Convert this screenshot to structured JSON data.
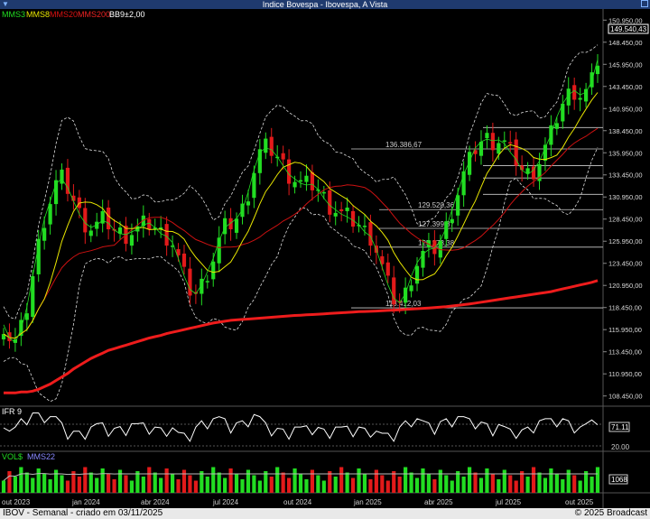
{
  "window": {
    "title": "Indice Bovespa - Ibovespa, A Vista"
  },
  "legend": [
    {
      "label": "MMS3",
      "color": "#22dd22"
    },
    {
      "label": "MMS8",
      "color": "#e8e600"
    },
    {
      "label": "MMS20",
      "color": "#dd1111"
    },
    {
      "label": "MMS200",
      "color": "#ee2222"
    },
    {
      "label": "BB9±2,00",
      "color": "#ffffff"
    }
  ],
  "price_axis": {
    "ticks": [
      "150.950,00",
      "148.450,00",
      "145.950,00",
      "143.450,00",
      "140.950,00",
      "138.450,00",
      "135.950,00",
      "133.450,00",
      "130.950,00",
      "128.450,00",
      "125.950,00",
      "123.450,00",
      "120.950,00",
      "118.450,00",
      "115.950,00",
      "113.450,00",
      "110.950,00",
      "108.450,00"
    ],
    "last_price_label": "149.540,43"
  },
  "fib_labels": [
    "136.386,67",
    "129.520,36",
    "127.399,37",
    "125.278,38",
    "118.412,03"
  ],
  "time_axis": [
    "out 2023",
    "jan 2024",
    "abr 2024",
    "jul 2024",
    "out 2024",
    "jan 2025",
    "abr 2025",
    "jul 2025",
    "out 2025"
  ],
  "ifr": {
    "label": "IFR 9",
    "value_label": "71.11",
    "bottom_label": "20.00"
  },
  "volume": {
    "label": "VOL$",
    "ma_label": "MMS22",
    "value_label": "1068"
  },
  "footer": {
    "left": "IBOV - Semanal - criado em 03/11/2025",
    "right": "© 2025 Broadcast"
  },
  "chart_data": {
    "type": "candlestick",
    "title": "Indice Bovespa - Ibovespa, A Vista",
    "ylim": [
      107500,
      152000
    ],
    "series": [
      {
        "name": "MMS3",
        "values": [
          116500,
          115000,
          114500,
          116000,
          118500,
          122000,
          125500,
          128500,
          130500,
          132500,
          133000,
          132000,
          130500,
          129000,
          128000,
          127500,
          127800,
          128300,
          128000,
          127200,
          126800,
          126700,
          127000,
          127300,
          127800,
          128000,
          127500,
          126800,
          126500,
          125800,
          124000,
          122000,
          120500,
          120000,
          121000,
          122500,
          124000,
          126000,
          127500,
          128000,
          128500,
          129500,
          131500,
          134000,
          136000,
          136500,
          136300,
          135500,
          134500,
          133500,
          133000,
          132500,
          132300,
          132400,
          131800,
          130800,
          130000,
          129500,
          129000,
          128700,
          128300,
          127800,
          127000,
          126500,
          125000,
          123000,
          121000,
          119500,
          119000,
          120000,
          122000,
          123500,
          124500,
          125000,
          125200,
          126000,
          127500,
          129500,
          131500,
          133500,
          135000,
          136500,
          137200,
          137500,
          137300,
          137400,
          137000,
          136000,
          135200,
          134000,
          133500,
          134000,
          135000,
          136500,
          138000,
          140000,
          141500,
          142500,
          143000,
          142500,
          142800,
          144000,
          146500
        ]
      },
      {
        "name": "MMS200",
        "values": [
          108800,
          108800,
          108800,
          108900,
          108900,
          109000,
          109200,
          109500,
          109800,
          110200,
          110600,
          111000,
          111500,
          111900,
          112300,
          112700,
          113000,
          113300,
          113600,
          113800,
          114000,
          114200,
          114400,
          114600,
          114800,
          115000,
          115150,
          115300,
          115500,
          115650,
          115800,
          115950,
          116100,
          116250,
          116400,
          116550,
          116700,
          116800,
          116900,
          117000,
          117050,
          117100,
          117150,
          117200,
          117250,
          117300,
          117350,
          117400,
          117450,
          117500,
          117550,
          117580,
          117620,
          117660,
          117700,
          117740,
          117780,
          117820,
          117860,
          117900,
          117940,
          117980,
          118000,
          118020,
          118050,
          118080,
          118120,
          118160,
          118200,
          118240,
          118280,
          118320,
          118360,
          118400,
          118450,
          118500,
          118550,
          118620,
          118700,
          118780,
          118860,
          118950,
          119050,
          119150,
          119250,
          119350,
          119450,
          119550,
          119650,
          119750,
          119850,
          119950,
          120050,
          120150,
          120250,
          120400,
          120550,
          120700,
          120850,
          121000,
          121150,
          121300,
          121500
        ]
      }
    ],
    "fib_levels": [
      136386.67,
      129520.36,
      127399.37,
      125278.38,
      118412.03
    ],
    "last_price": 149540.43
  }
}
